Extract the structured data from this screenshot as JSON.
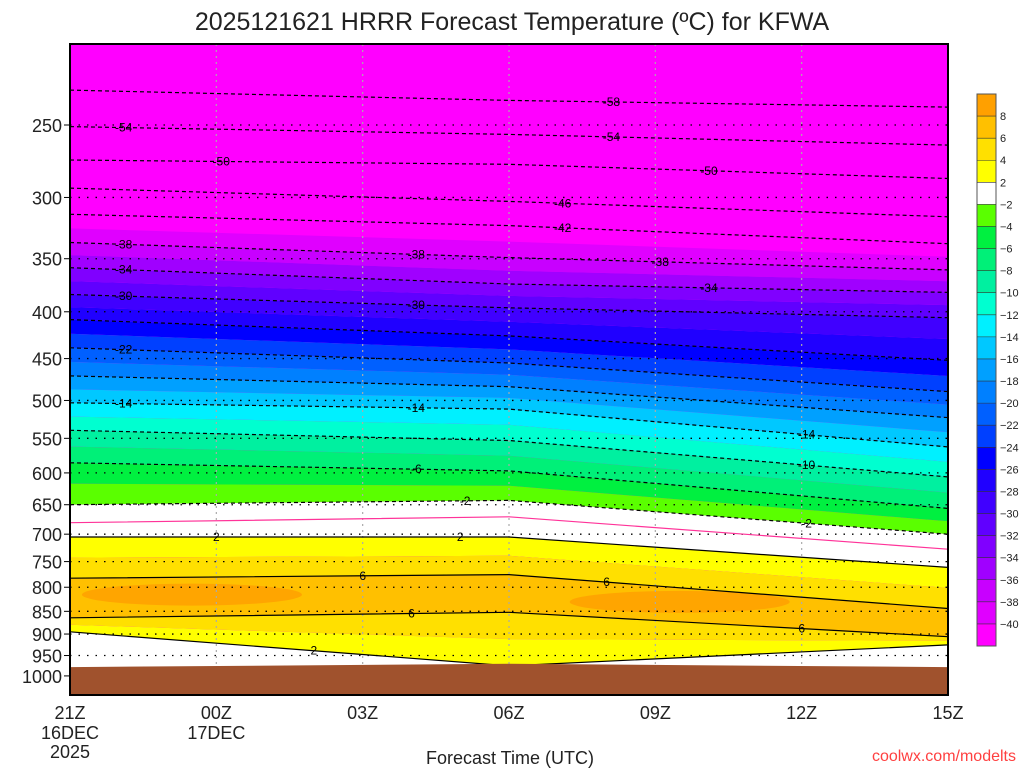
{
  "chart_data": {
    "type": "contour",
    "title": "2025121621 HRRR Forecast Temperature (ºC) for KFWA",
    "xlabel": "Forecast Time (UTC)",
    "ylabel": "",
    "watermark": "coolwx.com/modelts",
    "xlim_hours": [
      0,
      18
    ],
    "ylim_hpa": [
      1050,
      204
    ],
    "y_scale": "log",
    "x_ticks": [
      {
        "hour": 0,
        "label": "21Z",
        "sub": [
          "16DEC",
          "2025"
        ]
      },
      {
        "hour": 3,
        "label": "00Z",
        "sub": [
          "17DEC"
        ]
      },
      {
        "hour": 6,
        "label": "03Z",
        "sub": []
      },
      {
        "hour": 9,
        "label": "06Z",
        "sub": []
      },
      {
        "hour": 12,
        "label": "09Z",
        "sub": []
      },
      {
        "hour": 15,
        "label": "12Z",
        "sub": []
      },
      {
        "hour": 18,
        "label": "15Z",
        "sub": []
      }
    ],
    "y_ticks": [
      "250",
      "300",
      "350",
      "400",
      "450",
      "500",
      "550",
      "600",
      "650",
      "700",
      "750",
      "800",
      "850",
      "900",
      "950",
      "1000"
    ],
    "isotherm_hours": [
      0,
      9,
      18
    ],
    "isotherms": [
      {
        "id": "m58",
        "level": -58,
        "pressure": [
          229,
          235,
          239
        ]
      },
      {
        "id": "m54",
        "level": -54,
        "pressure": [
          251,
          256,
          263
        ]
      },
      {
        "id": "m50",
        "level": -50,
        "pressure": [
          273,
          276,
          286
        ]
      },
      {
        "id": "m46",
        "level": -46,
        "pressure": [
          293,
          303,
          315
        ]
      },
      {
        "id": "m42",
        "level": -42,
        "pressure": [
          313,
          322,
          337
        ]
      },
      {
        "id": "m38",
        "level": -38,
        "pressure": [
          336,
          349,
          360
        ]
      },
      {
        "id": "m34",
        "level": -34,
        "pressure": [
          358,
          373,
          381
        ]
      },
      {
        "id": "m30",
        "level": -30,
        "pressure": [
          383,
          396,
          406
        ]
      },
      {
        "id": "m26",
        "level": -26,
        "pressure": [
          408,
          425,
          452
        ]
      },
      {
        "id": "m22",
        "level": -22,
        "pressure": [
          438,
          455,
          489
        ]
      },
      {
        "id": "m18",
        "level": -18,
        "pressure": [
          470,
          483,
          522
        ]
      },
      {
        "id": "m14",
        "level": -14,
        "pressure": [
          503,
          511,
          562
        ]
      },
      {
        "id": "m10",
        "level": -10,
        "pressure": [
          539,
          553,
          606
        ]
      },
      {
        "id": "m6",
        "level": -6,
        "pressure": [
          585,
          597,
          656
        ]
      },
      {
        "id": "m2",
        "level": -2,
        "pressure": [
          650,
          643,
          700
        ]
      },
      {
        "id": "z_top",
        "level": 0,
        "pressure": [
          680,
          670,
          727
        ]
      },
      {
        "id": "p2_top",
        "level": 2,
        "pressure": [
          705,
          705,
          761
        ]
      },
      {
        "id": "p6_top",
        "level": 6,
        "pressure": [
          782,
          775,
          844
        ]
      },
      {
        "id": "p6_bot",
        "level": 6,
        "pressure": [
          864,
          852,
          906
        ]
      },
      {
        "id": "p2_bot",
        "level": 2,
        "pressure": [
          895,
          975,
          925
        ]
      }
    ],
    "surface_pressure": [
      978,
      970,
      978
    ],
    "warm_core_gt8": [
      {
        "hour": 2.5,
        "pressure": 815
      },
      {
        "hour": 12.5,
        "pressure": 830
      }
    ],
    "contour_labels": [
      {
        "text": "-54",
        "line": "m54",
        "hour": 1.1
      },
      {
        "text": "-50",
        "line": "m50",
        "hour": 3.1
      },
      {
        "text": "-38",
        "line": "m38",
        "hour": 1.1
      },
      {
        "text": "-34",
        "line": "m34",
        "hour": 1.1
      },
      {
        "text": "-30",
        "line": "m30",
        "hour": 1.1
      },
      {
        "text": "-22",
        "line": "m22",
        "hour": 1.1
      },
      {
        "text": "-14",
        "line": "m14",
        "hour": 1.1
      },
      {
        "text": "2",
        "line": "p2_top",
        "hour": 3.0
      },
      {
        "text": "-58",
        "line": "m58",
        "hour": 11.1
      },
      {
        "text": "-54",
        "line": "m54",
        "hour": 11.1
      },
      {
        "text": "-50",
        "line": "m50",
        "hour": 13.1
      },
      {
        "text": "-46",
        "line": "m46",
        "hour": 10.1
      },
      {
        "text": "-42",
        "line": "m42",
        "hour": 10.1
      },
      {
        "text": "-38",
        "line": "m38",
        "hour": 7.1
      },
      {
        "text": "-38",
        "line": "m38",
        "hour": 12.1
      },
      {
        "text": "-34",
        "line": "m34",
        "hour": 13.1
      },
      {
        "text": "-30",
        "line": "m30",
        "hour": 7.1
      },
      {
        "text": "-14",
        "line": "m14",
        "hour": 7.1
      },
      {
        "text": "-6",
        "line": "m6",
        "hour": 7.1
      },
      {
        "text": "-2",
        "line": "m2",
        "hour": 8.1
      },
      {
        "text": "2",
        "line": "p2_top",
        "hour": 8.0
      },
      {
        "text": "6",
        "line": "p6_top",
        "hour": 6.0
      },
      {
        "text": "6",
        "line": "p6_top",
        "hour": 11.0
      },
      {
        "text": "6",
        "line": "p6_bot",
        "hour": 7.0
      },
      {
        "text": "2",
        "line": "p2_bot",
        "hour": 5.0
      },
      {
        "text": "-14",
        "line": "m14",
        "hour": 15.1
      },
      {
        "text": "-10",
        "line": "m10",
        "hour": 15.1
      },
      {
        "text": "-2",
        "line": "m2",
        "hour": 15.1
      },
      {
        "text": "6",
        "line": "p6_bot",
        "hour": 15.0
      }
    ],
    "colorbar": {
      "labels": [
        "8",
        "6",
        "4",
        "2",
        "-2",
        "-4",
        "-6",
        "-8",
        "-10",
        "-12",
        "-14",
        "-16",
        "-18",
        "-20",
        "-22",
        "-24",
        "-26",
        "-28",
        "-30",
        "-32",
        "-34",
        "-36",
        "-38",
        "-40"
      ],
      "colors": [
        "#ffa000",
        "#ffc000",
        "#ffe000",
        "#ffff00",
        "#ffffff",
        "#5aff00",
        "#00f040",
        "#00f078",
        "#00f0a0",
        "#00ffd0",
        "#00f0ff",
        "#00c8ff",
        "#00a0ff",
        "#0080ff",
        "#0060ff",
        "#0040ff",
        "#0000ff",
        "#2000ff",
        "#4000ff",
        "#6000ff",
        "#8000ff",
        "#a000ff",
        "#c800ff",
        "#e000ff",
        "#ff00ff"
      ]
    },
    "ground_color": "#a0522d",
    "zero_line_color": "#ff3399",
    "watermark_color": "#ff4040"
  }
}
